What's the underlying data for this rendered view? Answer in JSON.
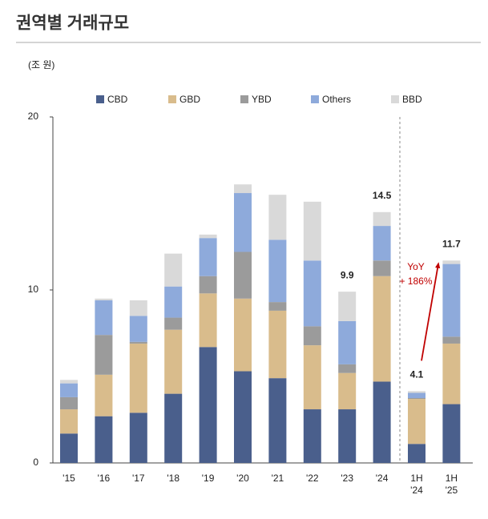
{
  "chart_data": {
    "type": "stacked_bar",
    "title": "권역별 거래규모",
    "unit_label": "(조 원)",
    "categories": [
      "'15",
      "'16",
      "'17",
      "'18",
      "'19",
      "'20",
      "'21",
      "'22",
      "'23",
      "'24",
      "1H '24",
      "1H '25"
    ],
    "series": [
      {
        "name": "CBD",
        "color": "#4a5f8c",
        "values": [
          1.7,
          2.7,
          2.9,
          4.0,
          6.7,
          5.3,
          4.9,
          3.1,
          3.1,
          4.7,
          1.1,
          3.4
        ]
      },
      {
        "name": "GBD",
        "color": "#d9bc8c",
        "values": [
          1.4,
          2.4,
          4.0,
          3.7,
          3.1,
          4.2,
          3.9,
          3.7,
          2.1,
          6.1,
          2.6,
          3.5
        ]
      },
      {
        "name": "YBD",
        "color": "#9b9b9b",
        "values": [
          0.7,
          2.3,
          0.1,
          0.7,
          1.0,
          2.7,
          0.5,
          1.1,
          0.5,
          0.9,
          0.05,
          0.4
        ]
      },
      {
        "name": "Others",
        "color": "#8eaadb",
        "values": [
          0.8,
          2.0,
          1.5,
          1.8,
          2.2,
          3.4,
          3.6,
          3.8,
          2.5,
          2.0,
          0.3,
          4.2
        ]
      },
      {
        "name": "BBD",
        "color": "#d9d9d9",
        "values": [
          0.2,
          0.1,
          0.9,
          1.9,
          0.2,
          0.5,
          2.6,
          3.4,
          1.7,
          0.8,
          0.1,
          0.2
        ]
      }
    ],
    "totals": [
      null,
      null,
      null,
      null,
      null,
      null,
      null,
      null,
      9.9,
      14.5,
      4.1,
      11.7
    ],
    "annotation": [
      "YoY",
      "+ 186%"
    ],
    "ylim": [
      0,
      20
    ],
    "yticks": [
      0,
      10,
      20
    ]
  }
}
